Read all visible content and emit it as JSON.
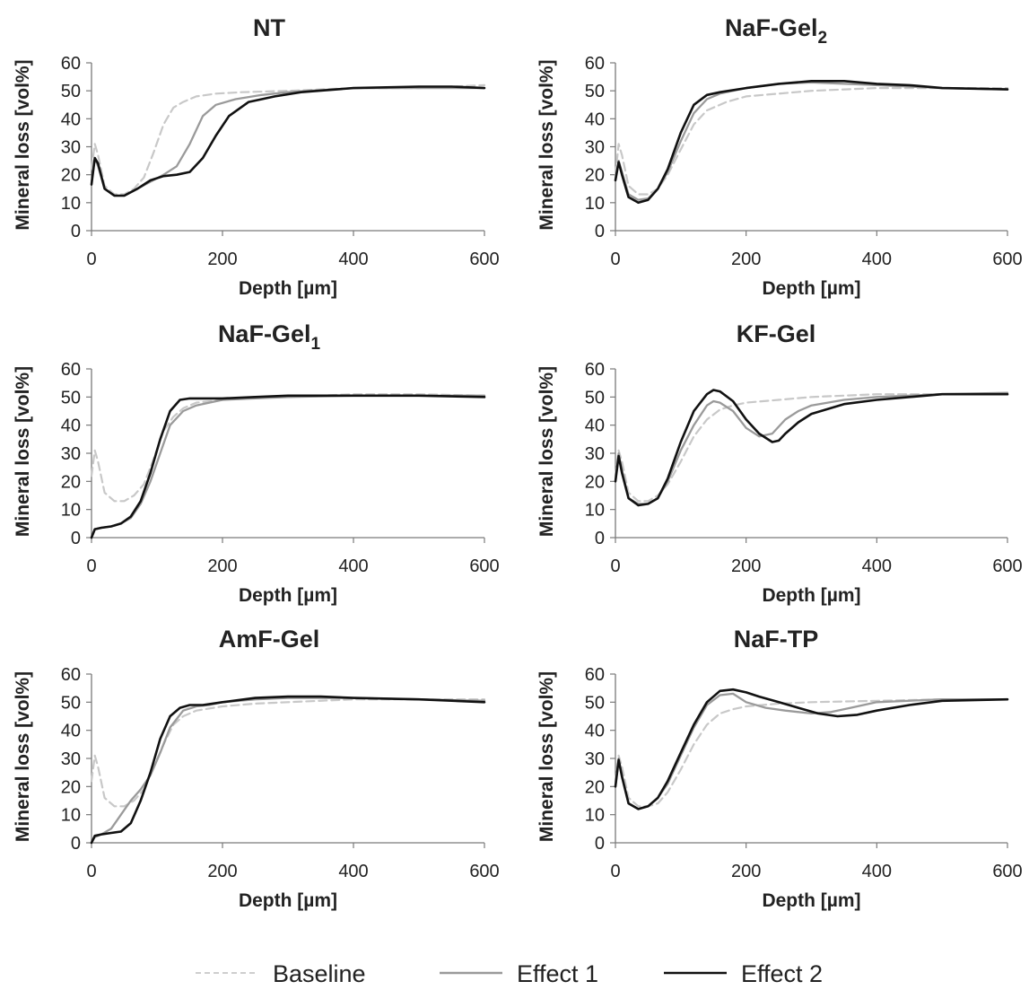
{
  "legend": {
    "position": "bottom-center",
    "items": [
      {
        "label": "Baseline",
        "color": "#c8c8c8",
        "dash": true
      },
      {
        "label": "Effect 1",
        "color": "#9a9a9a",
        "dash": false
      },
      {
        "label": "Effect 2",
        "color": "#111111",
        "dash": false
      }
    ]
  },
  "chart_data": [
    {
      "type": "line",
      "title": "NT",
      "title_sub": "",
      "xlabel": "Depth [µm]",
      "ylabel": "Mineral loss [vol%]",
      "xlim": [
        0,
        600
      ],
      "ylim": [
        0,
        60
      ],
      "xticks": [
        0,
        200,
        400,
        600
      ],
      "yticks": [
        0,
        10,
        20,
        30,
        40,
        50,
        60
      ],
      "grid": false,
      "series": [
        {
          "name": "Baseline",
          "x": [
            0,
            5,
            10,
            20,
            35,
            50,
            65,
            80,
            95,
            110,
            125,
            140,
            160,
            190,
            230,
            300,
            400,
            500,
            600
          ],
          "y": [
            22,
            31,
            27,
            16,
            13,
            13,
            15,
            19,
            28,
            38,
            44,
            46,
            48,
            49,
            49.5,
            50,
            51,
            51,
            52
          ]
        },
        {
          "name": "Effect 1",
          "x": [
            0,
            5,
            10,
            20,
            35,
            50,
            70,
            90,
            110,
            130,
            150,
            170,
            190,
            220,
            260,
            300,
            400,
            500,
            600
          ],
          "y": [
            17,
            26,
            23,
            15,
            12.5,
            12.5,
            15,
            17.5,
            20,
            23,
            31,
            41,
            45,
            47,
            48.5,
            49.5,
            51,
            51,
            51
          ]
        },
        {
          "name": "Effect 2",
          "x": [
            0,
            5,
            10,
            20,
            35,
            50,
            70,
            90,
            110,
            130,
            150,
            170,
            190,
            210,
            240,
            280,
            320,
            400,
            500,
            550,
            600
          ],
          "y": [
            16.5,
            26,
            24,
            15,
            12.5,
            12.5,
            15,
            18,
            19.5,
            20,
            21,
            26,
            34,
            41,
            46,
            48,
            49.5,
            51,
            51.5,
            51.5,
            51
          ]
        }
      ]
    },
    {
      "type": "line",
      "title": "NaF-Gel",
      "title_sub": "2",
      "xlabel": "Depth [µm]",
      "ylabel": "Mineral loss [vol%]",
      "xlim": [
        0,
        600
      ],
      "ylim": [
        0,
        60
      ],
      "xticks": [
        0,
        200,
        400,
        600
      ],
      "yticks": [
        0,
        10,
        20,
        30,
        40,
        50,
        60
      ],
      "grid": false,
      "series": [
        {
          "name": "Baseline",
          "x": [
            0,
            5,
            10,
            20,
            35,
            50,
            65,
            80,
            100,
            120,
            140,
            170,
            200,
            250,
            300,
            400,
            500,
            600
          ],
          "y": [
            20,
            31,
            27,
            16,
            13,
            13,
            15,
            20,
            29,
            38,
            43,
            46,
            48,
            49,
            50,
            51,
            51,
            51
          ]
        },
        {
          "name": "Effect 1",
          "x": [
            0,
            5,
            10,
            20,
            35,
            50,
            65,
            80,
            100,
            120,
            140,
            160,
            200,
            250,
            300,
            400,
            500,
            600
          ],
          "y": [
            18,
            25,
            21,
            13,
            11,
            11.5,
            15,
            21,
            32,
            42,
            47,
            49,
            51,
            52.5,
            53,
            52,
            51,
            50.5
          ]
        },
        {
          "name": "Effect 2",
          "x": [
            0,
            5,
            10,
            20,
            35,
            50,
            65,
            80,
            100,
            120,
            140,
            160,
            200,
            250,
            300,
            350,
            400,
            450,
            500,
            600
          ],
          "y": [
            18,
            24.5,
            20,
            12,
            10,
            11,
            15,
            22,
            35,
            45,
            48.5,
            49.5,
            51,
            52.5,
            53.5,
            53.5,
            52.5,
            52,
            51,
            50.5
          ]
        }
      ]
    },
    {
      "type": "line",
      "title": "NaF-Gel",
      "title_sub": "1",
      "xlabel": "Depth [µm]",
      "ylabel": "Mineral loss [vol%]",
      "xlim": [
        0,
        600
      ],
      "ylim": [
        0,
        60
      ],
      "xticks": [
        0,
        200,
        400,
        600
      ],
      "yticks": [
        0,
        10,
        20,
        30,
        40,
        50,
        60
      ],
      "grid": false,
      "series": [
        {
          "name": "Baseline",
          "x": [
            0,
            5,
            10,
            20,
            35,
            50,
            65,
            80,
            95,
            110,
            125,
            140,
            160,
            200,
            250,
            300,
            400,
            500,
            600
          ],
          "y": [
            22,
            31,
            27,
            16,
            13,
            13,
            15,
            19,
            28,
            38,
            43,
            46,
            48,
            49,
            50,
            50,
            51,
            51,
            50.5
          ]
        },
        {
          "name": "Effect 1",
          "x": [
            0,
            5,
            15,
            30,
            45,
            60,
            75,
            90,
            105,
            120,
            140,
            160,
            180,
            200,
            250,
            300,
            400,
            500,
            600
          ],
          "y": [
            0,
            3,
            3.5,
            4,
            5,
            7,
            12,
            20,
            30,
            40,
            45,
            47,
            48,
            49,
            49.5,
            50,
            50.5,
            50.5,
            50.5
          ]
        },
        {
          "name": "Effect 2",
          "x": [
            0,
            5,
            15,
            30,
            45,
            60,
            75,
            90,
            105,
            120,
            135,
            150,
            170,
            200,
            250,
            300,
            400,
            500,
            600
          ],
          "y": [
            0,
            3,
            3.5,
            4,
            5,
            7.5,
            13,
            23,
            35,
            45,
            49,
            49.5,
            49.5,
            49.5,
            50,
            50.5,
            50.5,
            50.5,
            50
          ]
        }
      ]
    },
    {
      "type": "line",
      "title": "KF-Gel",
      "title_sub": "",
      "xlabel": "Depth [µm]",
      "ylabel": "Mineral loss [vol%]",
      "xlim": [
        0,
        600
      ],
      "ylim": [
        0,
        60
      ],
      "xticks": [
        0,
        200,
        400,
        600
      ],
      "yticks": [
        0,
        10,
        20,
        30,
        40,
        50,
        60
      ],
      "grid": false,
      "series": [
        {
          "name": "Baseline",
          "x": [
            0,
            5,
            10,
            20,
            35,
            50,
            65,
            80,
            100,
            120,
            140,
            160,
            180,
            200,
            250,
            300,
            350,
            400,
            500,
            600
          ],
          "y": [
            22,
            31,
            27,
            16,
            13,
            13,
            15,
            19,
            27,
            36,
            42,
            45.5,
            47,
            48,
            49,
            50,
            50.5,
            51,
            51,
            51
          ]
        },
        {
          "name": "Effect 1",
          "x": [
            0,
            5,
            10,
            20,
            35,
            50,
            65,
            80,
            100,
            120,
            140,
            150,
            160,
            180,
            200,
            220,
            240,
            260,
            280,
            300,
            350,
            400,
            500,
            600
          ],
          "y": [
            20,
            30,
            24,
            14,
            12,
            12,
            14,
            20,
            31,
            40,
            47,
            48.5,
            48,
            45,
            39,
            36,
            37,
            42,
            45,
            47,
            49,
            50,
            51,
            51.5
          ]
        },
        {
          "name": "Effect 2",
          "x": [
            0,
            5,
            10,
            20,
            35,
            50,
            65,
            80,
            100,
            120,
            140,
            150,
            160,
            180,
            200,
            220,
            240,
            250,
            260,
            280,
            300,
            350,
            400,
            500,
            600
          ],
          "y": [
            20,
            29,
            23,
            14,
            11.5,
            12,
            14,
            21,
            34,
            45,
            51,
            52.5,
            52,
            48.5,
            42,
            37,
            34,
            34.5,
            37,
            41,
            44,
            47.5,
            49,
            51,
            51
          ]
        }
      ]
    },
    {
      "type": "line",
      "title": "AmF-Gel",
      "title_sub": "",
      "xlabel": "Depth [µm]",
      "ylabel": "Mineral loss [vol%]",
      "xlim": [
        0,
        600
      ],
      "ylim": [
        0,
        60
      ],
      "xticks": [
        0,
        200,
        400,
        600
      ],
      "yticks": [
        0,
        10,
        20,
        30,
        40,
        50,
        60
      ],
      "grid": false,
      "series": [
        {
          "name": "Baseline",
          "x": [
            0,
            5,
            10,
            20,
            35,
            50,
            65,
            80,
            95,
            110,
            125,
            140,
            160,
            200,
            250,
            300,
            400,
            500,
            600
          ],
          "y": [
            22,
            31,
            27,
            16,
            13,
            13,
            15,
            19,
            27,
            35,
            42,
            45,
            47,
            48.5,
            49.5,
            50,
            51,
            51,
            51
          ]
        },
        {
          "name": "Effect 1",
          "x": [
            0,
            5,
            15,
            30,
            45,
            60,
            75,
            90,
            105,
            120,
            140,
            160,
            180,
            200,
            250,
            300,
            400,
            500,
            600
          ],
          "y": [
            0,
            2,
            3,
            5,
            10,
            15,
            19,
            24,
            32,
            41,
            47,
            48.5,
            49,
            50,
            51,
            51.5,
            51.5,
            51,
            50.5
          ]
        },
        {
          "name": "Effect 2",
          "x": [
            0,
            5,
            15,
            30,
            45,
            60,
            75,
            90,
            105,
            120,
            135,
            150,
            170,
            200,
            250,
            300,
            350,
            400,
            500,
            600
          ],
          "y": [
            0,
            2.5,
            3,
            3.5,
            4,
            7,
            15,
            25,
            37,
            45,
            48,
            49,
            49,
            50,
            51.5,
            52,
            52,
            51.5,
            51,
            50
          ]
        }
      ]
    },
    {
      "type": "line",
      "title": "NaF-TP",
      "title_sub": "",
      "xlabel": "Depth [µm]",
      "ylabel": "Mineral loss [vol%]",
      "xlim": [
        0,
        600
      ],
      "ylim": [
        0,
        60
      ],
      "xticks": [
        0,
        200,
        400,
        600
      ],
      "yticks": [
        0,
        10,
        20,
        30,
        40,
        50,
        60
      ],
      "grid": false,
      "series": [
        {
          "name": "Baseline",
          "x": [
            0,
            5,
            10,
            20,
            35,
            50,
            65,
            80,
            100,
            120,
            140,
            160,
            180,
            200,
            250,
            300,
            400,
            500,
            600
          ],
          "y": [
            22,
            31,
            27,
            16,
            13,
            13,
            14,
            18,
            26,
            35,
            42,
            46,
            47.5,
            48.5,
            49.5,
            50,
            50.5,
            51,
            51
          ]
        },
        {
          "name": "Effect 1",
          "x": [
            0,
            5,
            10,
            20,
            35,
            50,
            65,
            80,
            100,
            120,
            140,
            160,
            180,
            200,
            230,
            260,
            300,
            330,
            360,
            400,
            500,
            600
          ],
          "y": [
            20,
            30,
            24,
            14,
            12,
            13,
            16,
            21,
            31,
            41,
            49,
            52.5,
            53,
            50,
            48,
            47,
            46,
            46.5,
            48,
            50,
            51,
            51
          ]
        },
        {
          "name": "Effect 2",
          "x": [
            0,
            5,
            10,
            20,
            35,
            50,
            65,
            80,
            100,
            120,
            140,
            160,
            180,
            200,
            220,
            250,
            280,
            310,
            340,
            370,
            400,
            450,
            500,
            600
          ],
          "y": [
            20,
            29.5,
            23.5,
            14,
            12,
            13,
            16,
            22,
            32,
            42,
            50,
            54,
            54.5,
            53.5,
            52,
            50,
            48,
            46,
            45,
            45.5,
            47,
            49,
            50.5,
            51
          ]
        }
      ]
    }
  ]
}
